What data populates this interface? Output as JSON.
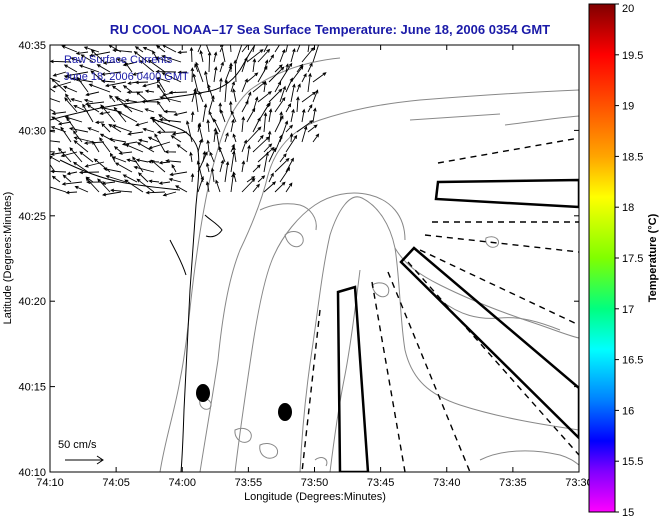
{
  "chart_data": {
    "type": "map",
    "title": "RU COOL  NOAA–17  Sea Surface Temperature:  June 18, 2006 0354 GMT",
    "xlabel": "Longitude (Degrees:Minutes)",
    "ylabel": "Latitude (Degrees:Minutes)",
    "annotation_lines": [
      "Raw Surface Currents",
      "June 18, 2006 0400 GMT"
    ],
    "scale_label": "50 cm/s",
    "x_ticks": [
      "74:10",
      "74:05",
      "74:00",
      "73:55",
      "73:50",
      "73:45",
      "73:40",
      "73:35",
      "73:30"
    ],
    "y_ticks": [
      "40:10",
      "40:15",
      "40:20",
      "40:25",
      "40:30",
      "40:35"
    ],
    "xlim_minutes": [
      -10,
      30
    ],
    "ylim_minutes": [
      10,
      35
    ],
    "grid": false,
    "colorbar": {
      "label": "Temperature (°C)",
      "min": 15,
      "max": 20,
      "ticks": [
        "20",
        "19.5",
        "19",
        "18.5",
        "18",
        "17.5",
        "17",
        "16.5",
        "16",
        "15.5",
        "15"
      ]
    }
  },
  "colors": {
    "title": "#1a1aa8",
    "annotation": "#1a1aa8",
    "contour": "#888888",
    "vectors": "#000000"
  }
}
